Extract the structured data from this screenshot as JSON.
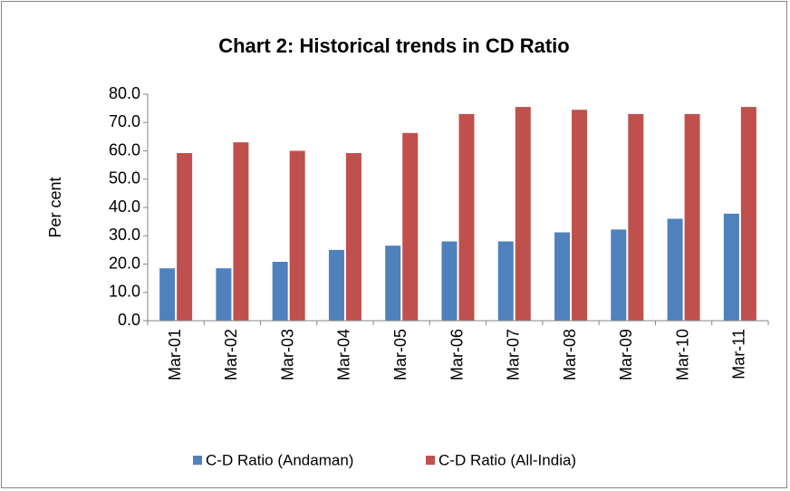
{
  "chart_data": {
    "type": "bar",
    "title": "Chart 2: Historical trends in CD Ratio",
    "y_label": "Per cent",
    "categories": [
      "Mar-01",
      "Mar-02",
      "Mar-03",
      "Mar-04",
      "Mar-05",
      "Mar-06",
      "Mar-07",
      "Mar-08",
      "Mar-09",
      "Mar-10",
      "Mar-11"
    ],
    "series": [
      {
        "name": "C-D Ratio (Andaman)",
        "color": "#4f81bd",
        "values": [
          18.5,
          18.5,
          20.8,
          25.0,
          26.5,
          28.0,
          28.0,
          31.2,
          32.2,
          36.0,
          37.8
        ]
      },
      {
        "name": "C-D Ratio (All-India)",
        "color": "#c0504d",
        "values": [
          59.2,
          63.0,
          60.0,
          59.2,
          66.3,
          73.0,
          75.5,
          74.5,
          73.0,
          73.0,
          75.5
        ]
      }
    ],
    "ylim": [
      0,
      80
    ],
    "yticks": [
      {
        "value": 0,
        "label": "0.0"
      },
      {
        "value": 10,
        "label": "10.0"
      },
      {
        "value": 20,
        "label": "20.0"
      },
      {
        "value": 30,
        "label": "30.0"
      },
      {
        "value": 40,
        "label": "40.0"
      },
      {
        "value": 50,
        "label": "50.0"
      },
      {
        "value": 60,
        "label": "60.0"
      },
      {
        "value": 70,
        "label": "70.0"
      },
      {
        "value": 80,
        "label": "80.0"
      }
    ],
    "grid": false,
    "legend": "bottom"
  }
}
